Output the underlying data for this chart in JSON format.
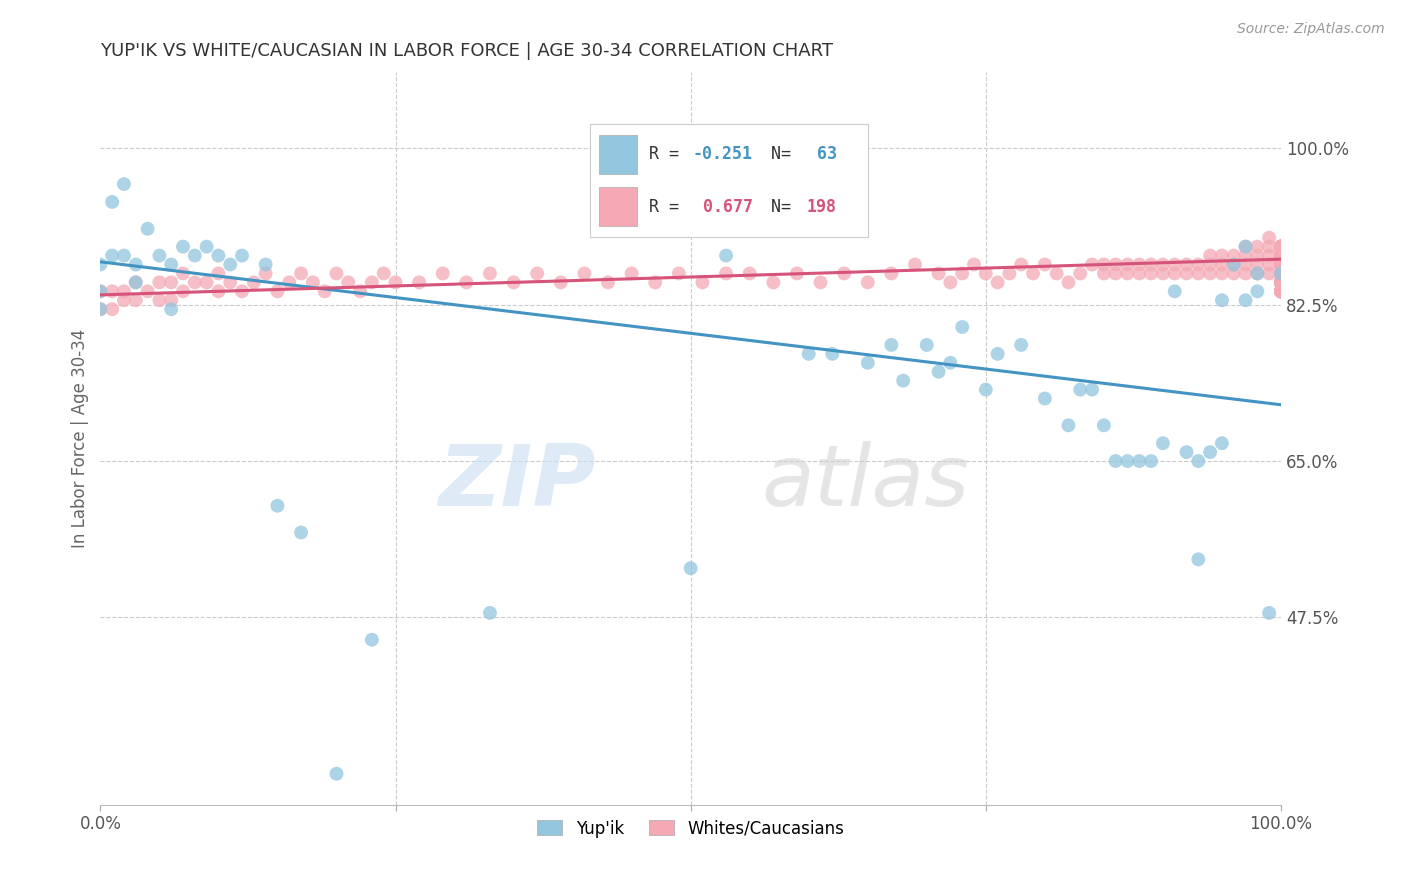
{
  "title": "YUP'IK VS WHITE/CAUCASIAN IN LABOR FORCE | AGE 30-34 CORRELATION CHART",
  "source": "Source: ZipAtlas.com",
  "ylabel": "In Labor Force | Age 30-34",
  "xlim": [
    0.0,
    1.0
  ],
  "ylim": [
    0.265,
    1.085
  ],
  "yticks": [
    0.475,
    0.65,
    0.825,
    1.0
  ],
  "ytick_labels": [
    "47.5%",
    "65.0%",
    "82.5%",
    "100.0%"
  ],
  "blue_color": "#92c5de",
  "pink_color": "#f4a9b4",
  "blue_line_color": "#4393c3",
  "pink_line_color": "#d6537a",
  "watermark_zip": "ZIP",
  "watermark_atlas": "atlas",
  "background_color": "#ffffff",
  "grid_color": "#cccccc",
  "blue_R": -0.251,
  "blue_N": 63,
  "pink_R": 0.677,
  "pink_N": 198,
  "blue_line_x0": 0.0,
  "blue_line_y0": 0.873,
  "blue_line_x1": 1.0,
  "blue_line_y1": 0.713,
  "pink_line_x0": 0.0,
  "pink_line_y0": 0.836,
  "pink_line_x1": 1.0,
  "pink_line_y1": 0.876,
  "blue_pts_x": [
    0.0,
    0.0,
    0.0,
    0.01,
    0.01,
    0.02,
    0.02,
    0.03,
    0.03,
    0.04,
    0.05,
    0.06,
    0.06,
    0.07,
    0.08,
    0.09,
    0.1,
    0.11,
    0.12,
    0.14,
    0.15,
    0.17,
    0.2,
    0.23,
    0.33,
    0.5,
    0.53,
    0.6,
    0.62,
    0.65,
    0.67,
    0.68,
    0.7,
    0.71,
    0.72,
    0.73,
    0.75,
    0.76,
    0.78,
    0.8,
    0.82,
    0.83,
    0.84,
    0.85,
    0.86,
    0.87,
    0.88,
    0.89,
    0.9,
    0.91,
    0.92,
    0.93,
    0.93,
    0.94,
    0.95,
    0.95,
    0.96,
    0.97,
    0.97,
    0.98,
    0.98,
    0.99,
    1.0
  ],
  "blue_pts_y": [
    0.87,
    0.84,
    0.82,
    0.94,
    0.88,
    0.96,
    0.88,
    0.87,
    0.85,
    0.91,
    0.88,
    0.87,
    0.82,
    0.89,
    0.88,
    0.89,
    0.88,
    0.87,
    0.88,
    0.87,
    0.6,
    0.57,
    0.3,
    0.45,
    0.48,
    0.53,
    0.88,
    0.77,
    0.77,
    0.76,
    0.78,
    0.74,
    0.78,
    0.75,
    0.76,
    0.8,
    0.73,
    0.77,
    0.78,
    0.72,
    0.69,
    0.73,
    0.73,
    0.69,
    0.65,
    0.65,
    0.65,
    0.65,
    0.67,
    0.84,
    0.66,
    0.65,
    0.54,
    0.66,
    0.67,
    0.83,
    0.87,
    0.83,
    0.89,
    0.86,
    0.84,
    0.48,
    0.86
  ],
  "pink_pts_x": [
    0.0,
    0.0,
    0.01,
    0.01,
    0.02,
    0.02,
    0.03,
    0.03,
    0.04,
    0.05,
    0.05,
    0.06,
    0.06,
    0.07,
    0.07,
    0.08,
    0.09,
    0.1,
    0.1,
    0.11,
    0.12,
    0.13,
    0.14,
    0.15,
    0.16,
    0.17,
    0.18,
    0.19,
    0.2,
    0.21,
    0.22,
    0.23,
    0.24,
    0.25,
    0.27,
    0.29,
    0.31,
    0.33,
    0.35,
    0.37,
    0.39,
    0.41,
    0.43,
    0.45,
    0.47,
    0.49,
    0.51,
    0.53,
    0.55,
    0.57,
    0.59,
    0.61,
    0.63,
    0.65,
    0.67,
    0.69,
    0.71,
    0.72,
    0.73,
    0.74,
    0.75,
    0.76,
    0.77,
    0.78,
    0.79,
    0.8,
    0.81,
    0.82,
    0.83,
    0.84,
    0.85,
    0.85,
    0.86,
    0.86,
    0.87,
    0.87,
    0.88,
    0.88,
    0.89,
    0.89,
    0.9,
    0.9,
    0.91,
    0.91,
    0.92,
    0.92,
    0.93,
    0.93,
    0.94,
    0.94,
    0.94,
    0.95,
    0.95,
    0.95,
    0.96,
    0.96,
    0.96,
    0.97,
    0.97,
    0.97,
    0.97,
    0.98,
    0.98,
    0.98,
    0.98,
    0.99,
    0.99,
    0.99,
    0.99,
    0.99,
    1.0,
    1.0,
    1.0,
    1.0,
    1.0,
    1.0,
    1.0,
    1.0,
    1.0,
    1.0,
    1.0,
    1.0,
    1.0,
    1.0,
    1.0,
    1.0,
    1.0,
    1.0,
    1.0,
    1.0,
    1.0,
    1.0,
    1.0,
    1.0,
    1.0,
    1.0,
    1.0,
    1.0,
    1.0,
    1.0,
    1.0,
    1.0,
    1.0,
    1.0,
    1.0,
    1.0,
    1.0,
    1.0,
    1.0,
    1.0,
    1.0,
    1.0,
    1.0,
    1.0,
    1.0,
    1.0,
    1.0,
    1.0,
    1.0,
    1.0,
    1.0,
    1.0,
    1.0,
    1.0,
    1.0,
    1.0,
    1.0,
    1.0,
    1.0,
    1.0,
    1.0,
    1.0,
    1.0,
    1.0,
    1.0,
    1.0,
    1.0,
    1.0,
    1.0,
    1.0,
    1.0,
    1.0,
    1.0,
    1.0,
    1.0,
    1.0,
    1.0,
    1.0,
    1.0,
    1.0,
    1.0,
    1.0,
    1.0,
    1.0,
    1.0,
    1.0,
    1.0,
    1.0
  ],
  "pink_pts_y": [
    0.84,
    0.82,
    0.84,
    0.82,
    0.84,
    0.83,
    0.85,
    0.83,
    0.84,
    0.85,
    0.83,
    0.85,
    0.83,
    0.86,
    0.84,
    0.85,
    0.85,
    0.84,
    0.86,
    0.85,
    0.84,
    0.85,
    0.86,
    0.84,
    0.85,
    0.86,
    0.85,
    0.84,
    0.86,
    0.85,
    0.84,
    0.85,
    0.86,
    0.85,
    0.85,
    0.86,
    0.85,
    0.86,
    0.85,
    0.86,
    0.85,
    0.86,
    0.85,
    0.86,
    0.85,
    0.86,
    0.85,
    0.86,
    0.86,
    0.85,
    0.86,
    0.85,
    0.86,
    0.85,
    0.86,
    0.87,
    0.86,
    0.85,
    0.86,
    0.87,
    0.86,
    0.85,
    0.86,
    0.87,
    0.86,
    0.87,
    0.86,
    0.85,
    0.86,
    0.87,
    0.86,
    0.87,
    0.86,
    0.87,
    0.86,
    0.87,
    0.86,
    0.87,
    0.86,
    0.87,
    0.86,
    0.87,
    0.86,
    0.87,
    0.86,
    0.87,
    0.86,
    0.87,
    0.86,
    0.87,
    0.88,
    0.86,
    0.87,
    0.88,
    0.86,
    0.87,
    0.88,
    0.86,
    0.87,
    0.88,
    0.89,
    0.86,
    0.87,
    0.88,
    0.89,
    0.86,
    0.87,
    0.88,
    0.89,
    0.9,
    0.84,
    0.85,
    0.86,
    0.87,
    0.88,
    0.89,
    0.84,
    0.85,
    0.86,
    0.87,
    0.88,
    0.89,
    0.84,
    0.85,
    0.86,
    0.87,
    0.88,
    0.89,
    0.84,
    0.85,
    0.86,
    0.87,
    0.88,
    0.89,
    0.84,
    0.85,
    0.86,
    0.87,
    0.88,
    0.89,
    0.84,
    0.85,
    0.86,
    0.87,
    0.88,
    0.89,
    0.84,
    0.85,
    0.86,
    0.87,
    0.88,
    0.89,
    0.84,
    0.85,
    0.86,
    0.87,
    0.88,
    0.89,
    0.84,
    0.85,
    0.86,
    0.87,
    0.88,
    0.89,
    0.84,
    0.85,
    0.86,
    0.87,
    0.88,
    0.89,
    0.84,
    0.85,
    0.86,
    0.87,
    0.88,
    0.89,
    0.84,
    0.85,
    0.86,
    0.87,
    0.88,
    0.89,
    0.84,
    0.85,
    0.86,
    0.87,
    0.88,
    0.89,
    0.84,
    0.85,
    0.86,
    0.87,
    0.88,
    0.89,
    0.84,
    0.85,
    0.86,
    0.87
  ]
}
